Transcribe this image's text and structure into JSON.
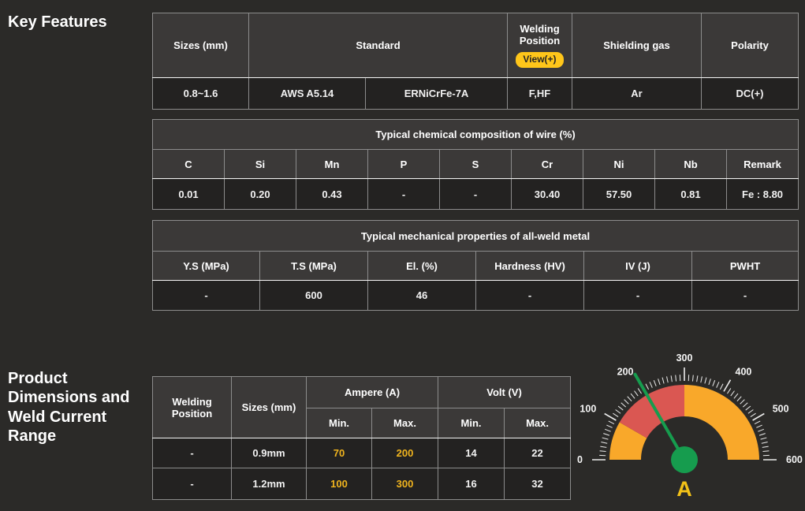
{
  "sections": {
    "key_features": {
      "title": "Key Features"
    },
    "product_dimensions": {
      "title": "Product Dimensions and Weld Current Range"
    }
  },
  "spec_table": {
    "headers": {
      "sizes": "Sizes (mm)",
      "standard": "Standard",
      "welding_position": "Welding Position",
      "view_badge": "View(+)",
      "shielding_gas": "Shielding gas",
      "polarity": "Polarity"
    },
    "row": {
      "sizes": "0.8~1.6",
      "standard_spec": "AWS A5.14",
      "standard_class": "ERNiCrFe-7A",
      "welding_position": "F,HF",
      "shielding_gas": "Ar",
      "polarity": "DC(+)"
    }
  },
  "chemical_table": {
    "title": "Typical chemical composition of wire (%)",
    "columns": [
      "C",
      "Si",
      "Mn",
      "P",
      "S",
      "Cr",
      "Ni",
      "Nb",
      "Remark"
    ],
    "values": [
      "0.01",
      "0.20",
      "0.43",
      "-",
      "-",
      "30.40",
      "57.50",
      "0.81",
      "Fe : 8.80"
    ]
  },
  "mechanical_table": {
    "title": "Typical mechanical properties of all-weld metal",
    "columns": [
      "Y.S (MPa)",
      "T.S (MPa)",
      "El. (%)",
      "Hardness (HV)",
      "IV (J)",
      "PWHT"
    ],
    "values": [
      "-",
      "600",
      "46",
      "-",
      "-",
      "-"
    ]
  },
  "current_table": {
    "headers": {
      "welding_position": "Welding Position",
      "sizes": "Sizes (mm)",
      "ampere": "Ampere (A)",
      "volt": "Volt (V)",
      "min": "Min.",
      "max": "Max."
    },
    "rows": [
      {
        "welding_position": "-",
        "size": "0.9mm",
        "ampere_min": "70",
        "ampere_max": "200",
        "volt_min": "14",
        "volt_max": "22"
      },
      {
        "welding_position": "-",
        "size": "1.2mm",
        "ampere_min": "100",
        "ampere_max": "300",
        "volt_min": "16",
        "volt_max": "32"
      }
    ]
  },
  "chart_data": {
    "type": "gauge",
    "min": 0,
    "max": 600,
    "major_ticks": [
      0,
      100,
      200,
      300,
      400,
      500,
      600
    ],
    "minor_tick_step": 10,
    "needle_value": 200,
    "bands": [
      {
        "from": 0,
        "to": 100,
        "color": "#f9a82a"
      },
      {
        "from": 100,
        "to": 300,
        "color": "#da5752"
      },
      {
        "from": 300,
        "to": 600,
        "color": "#f9a82a"
      }
    ],
    "unit_label": "A",
    "needle_color": "#169c4e",
    "hub_color": "#169c4e",
    "tick_color": "#ececec",
    "unit_label_color": "#f2c118"
  },
  "colors": {
    "page_bg": "#2b2a28",
    "header_cell_bg": "#3b3938",
    "body_cell_bg": "#232221",
    "cell_border": "#8c8c8c",
    "header_separator": "#f5f5f5",
    "badge_bg": "#ffc61a",
    "ampere_value_text": "#f0b41e"
  }
}
